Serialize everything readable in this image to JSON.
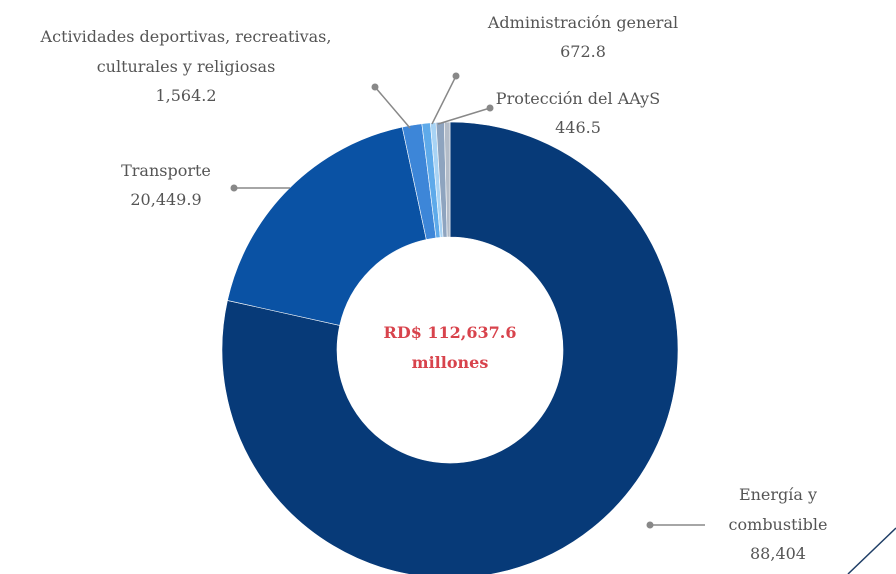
{
  "chart_data": {
    "type": "donut",
    "categories": [
      "Energía y combustible",
      "Transporte",
      "Actividades deportivas, recreativas, culturales y religiosas",
      "Administración general",
      "Protección del AAyS",
      null,
      null
    ],
    "values": [
      88404,
      20449.9,
      1564.2,
      672.8,
      446.5,
      650.2,
      450
    ],
    "value_labels": [
      "88,404",
      "20,449.9",
      "1,564.2",
      "672.8",
      "446.5",
      null,
      null
    ],
    "colors": [
      "#073a78",
      "#0a52a4",
      "#3d86d8",
      "#5eaaea",
      "#a8d3f4",
      "#8ea4bf",
      "#b3bcc8"
    ],
    "center_label": [
      "RD$ 112,637.6",
      "millones"
    ]
  }
}
